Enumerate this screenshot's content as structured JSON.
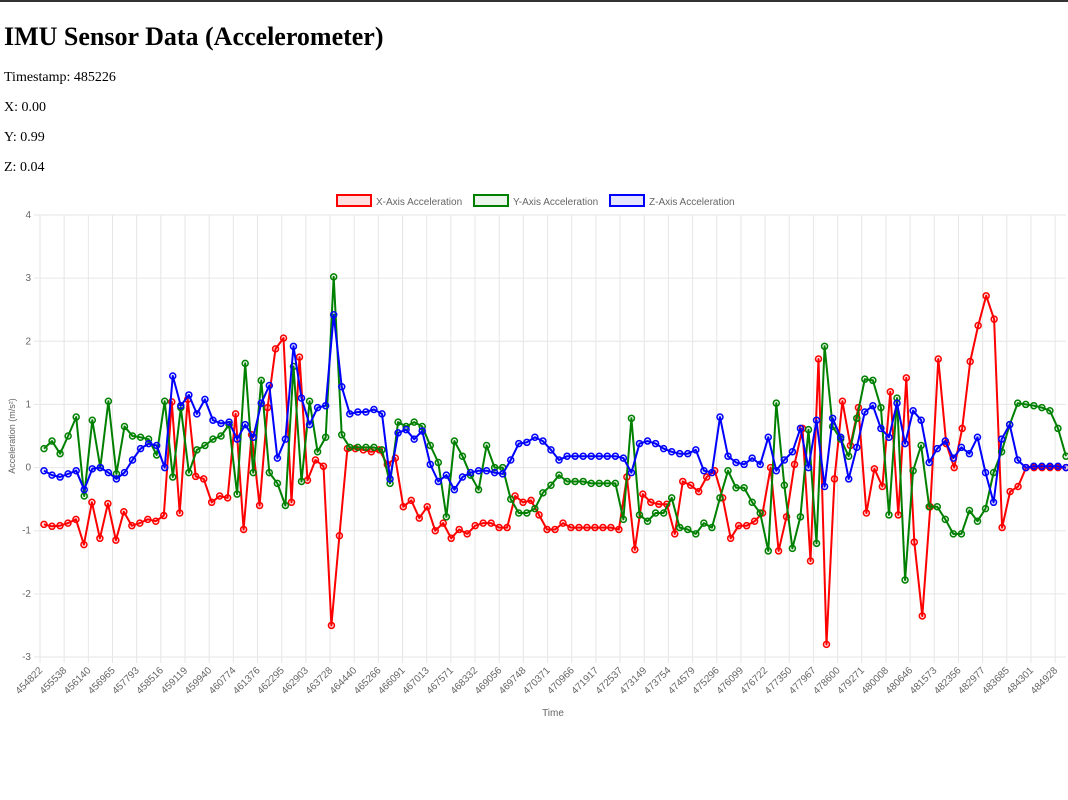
{
  "page": {
    "title": "IMU Sensor Data (Accelerometer)",
    "timestamp_label": "Timestamp: ",
    "timestamp": "485226",
    "x_label": "X: ",
    "x_value": "0.00",
    "y_label": "Y: ",
    "y_value": "0.99",
    "z_label": "Z: ",
    "z_value": "0.04"
  },
  "chart_data": {
    "type": "line",
    "xlabel": "Time",
    "ylabel": "Acceleration (m/s²)",
    "ylim": [
      -3,
      4
    ],
    "yticks": [
      -3,
      -2,
      -1,
      0,
      1,
      2,
      3,
      4
    ],
    "grid": true,
    "legend_position": "top-center",
    "tick_labels": [
      "454822",
      "455538",
      "456140",
      "456965",
      "457793",
      "458516",
      "459119",
      "459940",
      "460774",
      "461376",
      "462295",
      "462903",
      "463728",
      "464440",
      "465266",
      "466091",
      "467013",
      "467571",
      "468332",
      "469056",
      "469748",
      "470371",
      "470966",
      "471917",
      "472537",
      "473149",
      "473754",
      "474579",
      "475296",
      "476099",
      "476722",
      "477350",
      "477967",
      "478600",
      "479271",
      "480008",
      "480646",
      "481573",
      "482356",
      "482977",
      "483685",
      "484301",
      "484928"
    ],
    "series": [
      {
        "name": "X-Axis Acceleration",
        "color": "#ff0000",
        "fill": "rgba(255,0,0,0.12)",
        "values": [
          -0.9,
          -0.93,
          -0.92,
          -0.88,
          -0.82,
          -1.22,
          -0.55,
          -1.12,
          -0.57,
          -1.15,
          -0.7,
          -0.92,
          -0.88,
          -0.82,
          -0.85,
          -0.76,
          1.04,
          -0.72,
          1.08,
          -0.14,
          -0.18,
          -0.55,
          -0.45,
          -0.48,
          0.85,
          -0.98,
          0.52,
          -0.6,
          0.95,
          1.88,
          2.05,
          -0.55,
          1.75,
          -0.2,
          0.12,
          0.02,
          -2.5,
          -1.08,
          0.3,
          0.3,
          0.28,
          0.25,
          0.28,
          0.05,
          0.15,
          -0.62,
          -0.52,
          -0.8,
          -0.62,
          -1.0,
          -0.88,
          -1.12,
          -0.98,
          -1.05,
          -0.92,
          -0.88,
          -0.88,
          -0.95,
          -0.95,
          -0.45,
          -0.55,
          -0.52,
          -0.75,
          -0.98,
          -0.98,
          -0.88,
          -0.95,
          -0.95,
          -0.95,
          -0.95,
          -0.95,
          -0.95,
          -0.98,
          -0.15,
          -1.3,
          -0.42,
          -0.55,
          -0.58,
          -0.58,
          -1.05,
          -0.22,
          -0.28,
          -0.38,
          -0.15,
          -0.05,
          -0.48,
          -1.12,
          -0.92,
          -0.92,
          -0.85,
          -0.72,
          0.0,
          -1.32,
          -0.78,
          0.05,
          0.62,
          -1.48,
          1.72,
          -2.8,
          -0.18,
          1.05,
          0.35,
          0.95,
          -0.72,
          -0.02,
          -0.3,
          1.2,
          -0.75,
          1.42,
          -1.18,
          -2.35,
          -0.62,
          1.72,
          0.38,
          0.0,
          0.62,
          1.68,
          2.25,
          2.72,
          2.35,
          -0.95,
          -0.38,
          -0.3,
          0.0,
          0.0,
          0.0,
          0.0,
          0.0,
          0.0
        ]
      },
      {
        "name": "Y-Axis Acceleration",
        "color": "#008000",
        "fill": "rgba(0,128,0,0.08)",
        "values": [
          0.3,
          0.42,
          0.22,
          0.5,
          0.8,
          -0.45,
          0.75,
          0.0,
          1.05,
          -0.1,
          0.65,
          0.5,
          0.48,
          0.45,
          0.2,
          1.05,
          -0.15,
          0.95,
          -0.08,
          0.28,
          0.35,
          0.45,
          0.5,
          0.68,
          -0.42,
          1.65,
          -0.08,
          1.38,
          -0.08,
          -0.25,
          -0.6,
          1.6,
          -0.22,
          1.05,
          0.25,
          0.48,
          3.02,
          0.52,
          0.32,
          0.32,
          0.32,
          0.32,
          0.28,
          -0.25,
          0.72,
          0.65,
          0.72,
          0.65,
          0.35,
          0.08,
          -0.78,
          0.42,
          0.18,
          -0.12,
          -0.35,
          0.35,
          0.0,
          0.0,
          -0.5,
          -0.72,
          -0.72,
          -0.65,
          -0.4,
          -0.28,
          -0.12,
          -0.22,
          -0.22,
          -0.22,
          -0.25,
          -0.25,
          -0.25,
          -0.25,
          -0.82,
          0.78,
          -0.75,
          -0.85,
          -0.72,
          -0.72,
          -0.48,
          -0.95,
          -0.98,
          -1.05,
          -0.88,
          -0.95,
          -0.48,
          -0.05,
          -0.32,
          -0.32,
          -0.55,
          -0.72,
          -1.32,
          1.02,
          -0.28,
          -1.28,
          -0.78,
          0.6,
          -1.2,
          1.92,
          0.65,
          0.45,
          0.18,
          0.78,
          1.4,
          1.38,
          0.95,
          -0.75,
          1.1,
          -1.78,
          -0.05,
          0.35,
          -0.62,
          -0.62,
          -0.82,
          -1.05,
          -1.05,
          -0.68,
          -0.85,
          -0.65,
          -0.08,
          0.25,
          0.68,
          1.02,
          1.0,
          0.98,
          0.95,
          0.9,
          0.62,
          0.18
        ]
      },
      {
        "name": "Z-Axis Acceleration",
        "color": "#0000ff",
        "fill": "rgba(0,0,255,0.10)",
        "values": [
          -0.05,
          -0.12,
          -0.15,
          -0.1,
          -0.05,
          -0.35,
          -0.02,
          0.0,
          -0.08,
          -0.18,
          -0.08,
          0.12,
          0.3,
          0.38,
          0.35,
          0.0,
          1.45,
          0.98,
          1.15,
          0.85,
          1.08,
          0.75,
          0.7,
          0.72,
          0.45,
          0.68,
          0.48,
          1.02,
          1.3,
          0.15,
          0.45,
          1.92,
          1.1,
          0.68,
          0.95,
          0.98,
          2.42,
          1.28,
          0.85,
          0.88,
          0.88,
          0.92,
          0.85,
          -0.18,
          0.55,
          0.6,
          0.45,
          0.58,
          0.05,
          -0.22,
          -0.12,
          -0.35,
          -0.15,
          -0.08,
          -0.05,
          -0.05,
          -0.08,
          -0.1,
          0.12,
          0.38,
          0.4,
          0.48,
          0.42,
          0.28,
          0.12,
          0.18,
          0.18,
          0.18,
          0.18,
          0.18,
          0.18,
          0.18,
          0.15,
          -0.08,
          0.38,
          0.42,
          0.38,
          0.3,
          0.25,
          0.22,
          0.22,
          0.28,
          -0.05,
          -0.08,
          0.8,
          0.18,
          0.08,
          0.05,
          0.15,
          0.05,
          0.48,
          -0.05,
          0.12,
          0.25,
          0.62,
          0.0,
          0.75,
          -0.3,
          0.78,
          0.48,
          -0.18,
          0.32,
          0.88,
          0.98,
          0.62,
          0.48,
          1.02,
          0.38,
          0.9,
          0.75,
          0.08,
          0.3,
          0.42,
          0.15,
          0.32,
          0.22,
          0.48,
          -0.08,
          -0.55,
          0.45,
          0.68,
          0.12,
          0.0,
          0.02,
          0.02,
          0.02,
          0.02,
          0.0
        ]
      }
    ]
  }
}
